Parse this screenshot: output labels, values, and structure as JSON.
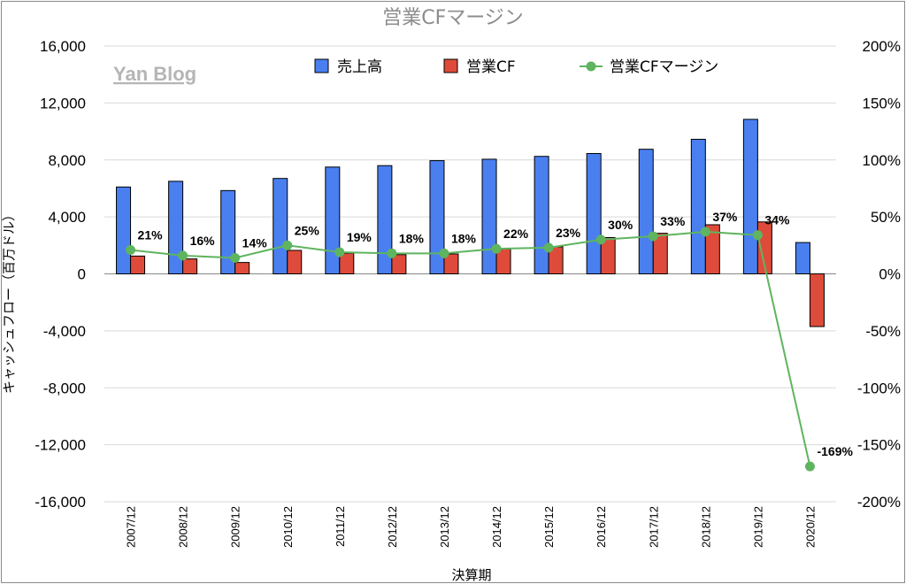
{
  "chart_data": {
    "type": "bar",
    "title": "営業CFマージン",
    "watermark": "Yan Blog",
    "xlabel": "決算期",
    "ylabel": "キャッシュフロー（百万ドル）",
    "categories": [
      "2007/12",
      "2008/12",
      "2009/12",
      "2010/12",
      "2011/12",
      "2012/12",
      "2013/12",
      "2014/12",
      "2015/12",
      "2016/12",
      "2017/12",
      "2018/12",
      "2019/12",
      "2020/12"
    ],
    "y_left": {
      "min": -16000,
      "max": 16000,
      "step": 4000,
      "tick_labels": [
        "16,000",
        "12,000",
        "8,000",
        "4,000",
        "0",
        "-4,000",
        "-8,000",
        "-12,000",
        "-16,000"
      ]
    },
    "y_right": {
      "min": -200,
      "max": 200,
      "step": 50,
      "unit": "%",
      "tick_labels": [
        "200%",
        "150%",
        "100%",
        "50%",
        "0%",
        "-50%",
        "-100%",
        "-150%",
        "-200%"
      ]
    },
    "legend_position": "top-center",
    "series": [
      {
        "name": "売上高",
        "type": "bar",
        "axis": "left",
        "color": "#4a7ff0",
        "values": [
          6100,
          6500,
          5850,
          6700,
          7500,
          7600,
          7950,
          8050,
          8250,
          8450,
          8750,
          9450,
          10850,
          2200
        ]
      },
      {
        "name": "営業CF",
        "type": "bar",
        "axis": "left",
        "color": "#de4b3a",
        "values": [
          1250,
          1050,
          800,
          1650,
          1450,
          1350,
          1400,
          1750,
          1900,
          2550,
          2850,
          3450,
          3650,
          -3700
        ]
      },
      {
        "name": "営業CFマージン",
        "type": "line",
        "axis": "right",
        "color": "#5fb45f",
        "values": [
          21,
          16,
          14,
          25,
          19,
          18,
          18,
          22,
          23,
          30,
          33,
          37,
          34,
          -169
        ],
        "labels": [
          "21%",
          "16%",
          "14%",
          "25%",
          "19%",
          "18%",
          "18%",
          "22%",
          "23%",
          "30%",
          "33%",
          "37%",
          "34%",
          "-169%"
        ]
      }
    ]
  }
}
